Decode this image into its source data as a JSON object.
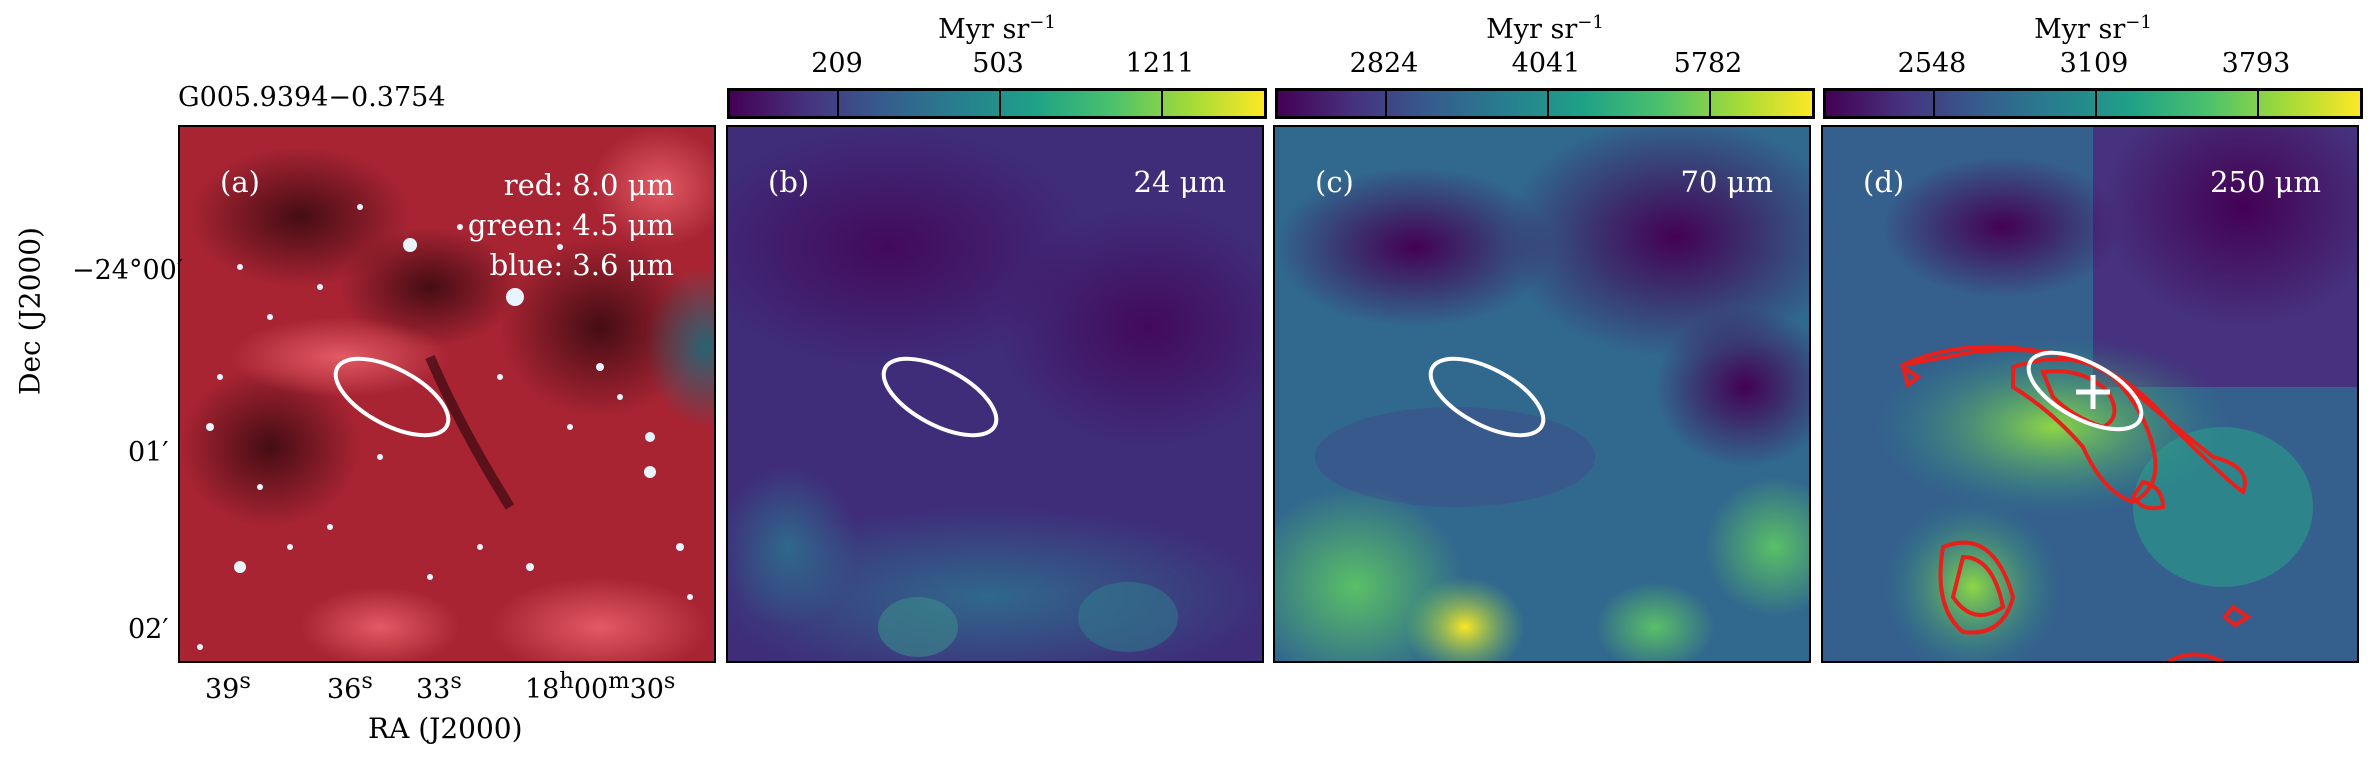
{
  "source_title": "G005.9394−0.3754",
  "colorbar_unit_main": "Myr sr",
  "colorbar_unit_exp": "−1",
  "colorbars": [
    {
      "ticks": [
        "209",
        "503",
        "1211"
      ]
    },
    {
      "ticks": [
        "2824",
        "4041",
        "5782"
      ]
    },
    {
      "ticks": [
        "2548",
        "3109",
        "3793"
      ]
    }
  ],
  "panels": [
    {
      "letter": "(a)",
      "rgb_legend": [
        "red: 8.0 μm",
        "green: 4.5 μm",
        "blue: 3.6 μm"
      ]
    },
    {
      "letter": "(b)",
      "wavelength": "24 μm"
    },
    {
      "letter": "(c)",
      "wavelength": "70 μm"
    },
    {
      "letter": "(d)",
      "wavelength": "250 μm"
    }
  ],
  "axes": {
    "xlabel": "RA (J2000)",
    "ylabel": "Dec (J2000)",
    "ra_ticks": [
      {
        "main": "39",
        "sup": "s"
      },
      {
        "main": "36",
        "sup": "s"
      },
      {
        "main": "33",
        "sup": "s"
      },
      {
        "main": "18",
        "sup": "h",
        "main2": "00",
        "sup2": "m",
        "main3": "30",
        "sup3": "s"
      }
    ],
    "dec_ticks": [
      "−24°00′",
      "01′",
      "02′"
    ]
  },
  "colors": {
    "viridis_low": "#440154",
    "viridis_mid": "#21918c",
    "viridis_high": "#fde725",
    "rgb_red": "#b02030",
    "ellipse": "#ffffff",
    "contour": "#e8201c",
    "marker": "#ffffff"
  }
}
